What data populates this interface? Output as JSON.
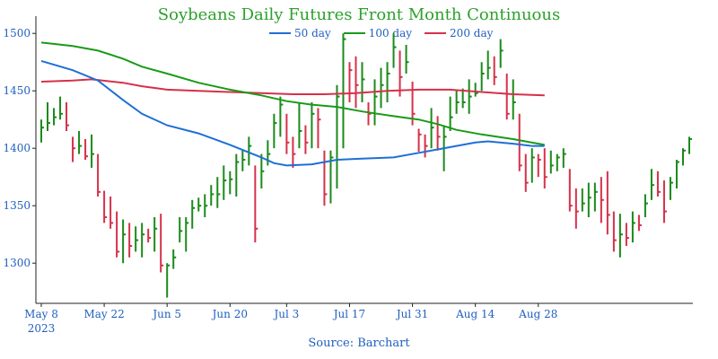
{
  "chart_data": {
    "type": "ohlc",
    "title": "Soybeans Daily Futures Front Month Continuous",
    "source": "Source: Barchart",
    "colors": {
      "up": "#1a8a1a",
      "down": "#d6304a",
      "title": "#2ca02c",
      "text": "#1f5fbf"
    },
    "xlabels": [
      {
        "label": "May 8",
        "sub": "2023",
        "index": 0
      },
      {
        "label": "May 22",
        "index": 10
      },
      {
        "label": "Jun 5",
        "index": 20
      },
      {
        "label": "Jun 20",
        "index": 30
      },
      {
        "label": "Jul 3",
        "index": 39
      },
      {
        "label": "Jul 17",
        "index": 49
      },
      {
        "label": "Jul 31",
        "index": 59
      },
      {
        "label": "Aug 14",
        "index": 69
      },
      {
        "label": "Aug 28",
        "index": 79
      }
    ],
    "ylim": [
      1265,
      1515
    ],
    "yticks": [
      1300,
      1350,
      1400,
      1450,
      1500
    ],
    "legend": [
      {
        "name": "50 day",
        "color": "#1f6fd6"
      },
      {
        "name": "100 day",
        "color": "#1a9a1a"
      },
      {
        "name": "200 day",
        "color": "#d6304a"
      }
    ],
    "bars": [
      [
        1405,
        1425,
        1418
      ],
      [
        1415,
        1440,
        1422
      ],
      [
        1420,
        1435,
        1427
      ],
      [
        1445,
        1425,
        1430
      ],
      [
        1440,
        1415,
        1420
      ],
      [
        1410,
        1388,
        1400
      ],
      [
        1395,
        1415,
        1402
      ],
      [
        1408,
        1390,
        1393
      ],
      [
        1412,
        1383,
        1395
      ],
      [
        1395,
        1358,
        1362
      ],
      [
        1363,
        1335,
        1340
      ],
      [
        1358,
        1330,
        1335
      ],
      [
        1345,
        1305,
        1310
      ],
      [
        1338,
        1300,
        1325
      ],
      [
        1335,
        1305,
        1315
      ],
      [
        1332,
        1310,
        1320
      ],
      [
        1335,
        1305,
        1325
      ],
      [
        1330,
        1318,
        1322
      ],
      [
        1340,
        1310,
        1330
      ],
      [
        1343,
        1292,
        1298
      ],
      [
        1300,
        1270,
        1298
      ],
      [
        1312,
        1295,
        1305
      ],
      [
        1340,
        1318,
        1328
      ],
      [
        1340,
        1310,
        1335
      ],
      [
        1355,
        1330,
        1348
      ],
      [
        1357,
        1345,
        1350
      ],
      [
        1360,
        1340,
        1350
      ],
      [
        1368,
        1350,
        1360
      ],
      [
        1375,
        1348,
        1360
      ],
      [
        1385,
        1355,
        1372
      ],
      [
        1380,
        1360,
        1373
      ],
      [
        1395,
        1358,
        1388
      ],
      [
        1398,
        1380,
        1390
      ],
      [
        1410,
        1385,
        1402
      ],
      [
        1385,
        1318,
        1330
      ],
      [
        1395,
        1365,
        1380
      ],
      [
        1407,
        1385,
        1395
      ],
      [
        1430,
        1400,
        1422
      ],
      [
        1445,
        1410,
        1438
      ],
      [
        1430,
        1395,
        1405
      ],
      [
        1410,
        1383,
        1395
      ],
      [
        1440,
        1400,
        1415
      ],
      [
        1420,
        1395,
        1405
      ],
      [
        1440,
        1400,
        1430
      ],
      [
        1435,
        1400,
        1425
      ],
      [
        1398,
        1350,
        1360
      ],
      [
        1398,
        1352,
        1392
      ],
      [
        1455,
        1365,
        1445
      ],
      [
        1500,
        1400,
        1495
      ],
      [
        1475,
        1440,
        1468
      ],
      [
        1480,
        1435,
        1455
      ],
      [
        1475,
        1440,
        1460
      ],
      [
        1440,
        1420,
        1430
      ],
      [
        1460,
        1420,
        1445
      ],
      [
        1470,
        1435,
        1455
      ],
      [
        1475,
        1440,
        1465
      ],
      [
        1500,
        1470,
        1488
      ],
      [
        1485,
        1445,
        1462
      ],
      [
        1490,
        1465,
        1475
      ],
      [
        1458,
        1420,
        1430
      ],
      [
        1417,
        1397,
        1412
      ],
      [
        1412,
        1392,
        1402
      ],
      [
        1435,
        1400,
        1418
      ],
      [
        1428,
        1398,
        1410
      ],
      [
        1420,
        1380,
        1410
      ],
      [
        1445,
        1415,
        1427
      ],
      [
        1450,
        1430,
        1440
      ],
      [
        1452,
        1435,
        1440
      ],
      [
        1460,
        1430,
        1445
      ],
      [
        1457,
        1445,
        1448
      ],
      [
        1475,
        1450,
        1465
      ],
      [
        1485,
        1460,
        1470
      ],
      [
        1480,
        1455,
        1462
      ],
      [
        1495,
        1470,
        1485
      ],
      [
        1465,
        1425,
        1430
      ],
      [
        1460,
        1425,
        1440
      ],
      [
        1430,
        1380,
        1385
      ],
      [
        1395,
        1362,
        1370
      ],
      [
        1400,
        1370,
        1392
      ],
      [
        1395,
        1375,
        1390
      ],
      [
        1400,
        1365,
        1375
      ],
      [
        1398,
        1378,
        1385
      ],
      [
        1395,
        1380,
        1392
      ],
      [
        1400,
        1383,
        1395
      ],
      [
        1382,
        1345,
        1350
      ],
      [
        1365,
        1330,
        1345
      ],
      [
        1365,
        1345,
        1352
      ],
      [
        1370,
        1340,
        1357
      ],
      [
        1370,
        1345,
        1362
      ],
      [
        1375,
        1335,
        1355
      ],
      [
        1380,
        1325,
        1342
      ],
      [
        1345,
        1310,
        1320
      ],
      [
        1343,
        1305,
        1325
      ],
      [
        1335,
        1315,
        1322
      ],
      [
        1345,
        1318,
        1335
      ],
      [
        1342,
        1328,
        1333
      ],
      [
        1360,
        1340,
        1352
      ],
      [
        1382,
        1355,
        1368
      ],
      [
        1380,
        1358,
        1362
      ],
      [
        1372,
        1335,
        1345
      ],
      [
        1375,
        1355,
        1370
      ],
      [
        1390,
        1365,
        1388
      ],
      [
        1400,
        1385,
        1398
      ],
      [
        1410,
        1395,
        1408
      ]
    ],
    "ma50": [
      [
        0,
        1476
      ],
      [
        5,
        1468
      ],
      [
        9,
        1459
      ],
      [
        13,
        1442
      ],
      [
        16,
        1430
      ],
      [
        20,
        1420
      ],
      [
        25,
        1413
      ],
      [
        30,
        1403
      ],
      [
        35,
        1392
      ],
      [
        37,
        1387
      ],
      [
        39,
        1385
      ],
      [
        43,
        1386
      ],
      [
        47,
        1390
      ],
      [
        51,
        1391
      ],
      [
        56,
        1392
      ],
      [
        60,
        1396
      ],
      [
        63,
        1399
      ],
      [
        66,
        1402
      ],
      [
        69,
        1405
      ],
      [
        71,
        1406
      ],
      [
        75,
        1404
      ],
      [
        78,
        1402
      ],
      [
        80,
        1402
      ]
    ],
    "ma100": [
      [
        0,
        1492
      ],
      [
        5,
        1489
      ],
      [
        9,
        1485
      ],
      [
        13,
        1478
      ],
      [
        16,
        1471
      ],
      [
        20,
        1465
      ],
      [
        25,
        1457
      ],
      [
        30,
        1451
      ],
      [
        35,
        1446
      ],
      [
        39,
        1441
      ],
      [
        43,
        1438
      ],
      [
        47,
        1436
      ],
      [
        51,
        1432
      ],
      [
        56,
        1428
      ],
      [
        60,
        1425
      ],
      [
        63,
        1421
      ],
      [
        66,
        1416
      ],
      [
        70,
        1412
      ],
      [
        75,
        1408
      ],
      [
        80,
        1403
      ]
    ],
    "ma200": [
      [
        0,
        1458
      ],
      [
        5,
        1459
      ],
      [
        8,
        1460
      ],
      [
        13,
        1457
      ],
      [
        16,
        1454
      ],
      [
        20,
        1451
      ],
      [
        25,
        1450
      ],
      [
        30,
        1449
      ],
      [
        35,
        1448
      ],
      [
        40,
        1447
      ],
      [
        45,
        1447
      ],
      [
        50,
        1448
      ],
      [
        55,
        1450
      ],
      [
        60,
        1451
      ],
      [
        65,
        1451
      ],
      [
        70,
        1449
      ],
      [
        75,
        1447
      ],
      [
        80,
        1446
      ]
    ]
  }
}
